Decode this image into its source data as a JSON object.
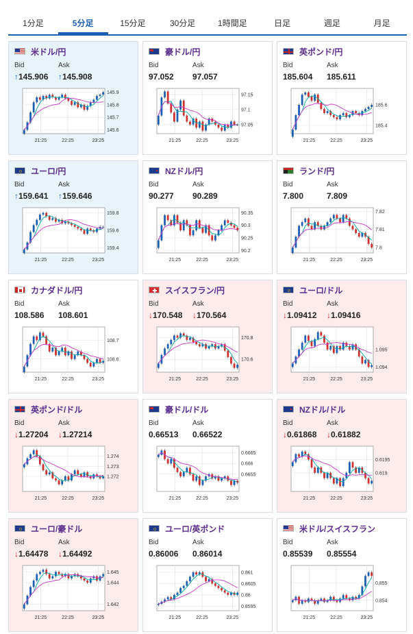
{
  "tabs": [
    "1分足",
    "5分足",
    "15分足",
    "30分足",
    "1時間足",
    "日足",
    "週足",
    "月足"
  ],
  "active_tab": 1,
  "labels": {
    "bid": "Bid",
    "ask": "Ask"
  },
  "x_ticks": [
    "21:25",
    "22:25",
    "23:25"
  ],
  "colors": {
    "up_candle": "#1a5fb4",
    "down_candle": "#d32f2f",
    "ma1": "#00a6a6",
    "ma2": "#cc33cc"
  },
  "cards": [
    {
      "pair": "米ドル/円",
      "flag": "us-jp-flag",
      "trend": "up",
      "bid": "145.906",
      "ask": "145.908",
      "yticks": [
        "145.9",
        "145.8",
        "145.7",
        "145.6"
      ],
      "closes": [
        145.6,
        145.66,
        145.74,
        145.82,
        145.86,
        145.84,
        145.87,
        145.85,
        145.88,
        145.86,
        145.84,
        145.86,
        145.88,
        145.85,
        145.83,
        145.8,
        145.82,
        145.78,
        145.8,
        145.76,
        145.79,
        145.82,
        145.84,
        145.87,
        145.88,
        145.9
      ],
      "yrange": [
        145.57,
        145.93
      ]
    },
    {
      "pair": "豪ドル/円",
      "flag": "au-jp-flag",
      "trend": "flat",
      "bid": "97.052",
      "ask": "97.057",
      "yticks": [
        "97.15",
        "97.1",
        "97.05"
      ],
      "closes": [
        97.08,
        97.14,
        97.16,
        97.12,
        97.09,
        97.06,
        97.1,
        97.13,
        97.08,
        97.06,
        97.05,
        97.07,
        97.04,
        97.06,
        97.03,
        97.05,
        97.07,
        97.06,
        97.05,
        97.04,
        97.03,
        97.05,
        97.04,
        97.06,
        97.05,
        97.05
      ],
      "yrange": [
        97.02,
        97.17
      ]
    },
    {
      "pair": "英ポンド/円",
      "flag": "gb-jp-flag",
      "trend": "flat",
      "bid": "185.604",
      "ask": "185.611",
      "yticks": [
        "185.6",
        "185.4"
      ],
      "closes": [
        185.36,
        185.5,
        185.6,
        185.7,
        185.72,
        185.68,
        185.64,
        185.7,
        185.62,
        185.56,
        185.52,
        185.54,
        185.5,
        185.48,
        185.46,
        185.5,
        185.52,
        185.48,
        185.5,
        185.54,
        185.52,
        185.5,
        185.54,
        185.56,
        185.58,
        185.6
      ],
      "yrange": [
        185.32,
        185.76
      ]
    },
    {
      "pair": "ユーロ/円",
      "flag": "eu-jp-flag",
      "trend": "up",
      "bid": "159.641",
      "ask": "159.646",
      "yticks": [
        "159.8",
        "159.6",
        "159.4"
      ],
      "closes": [
        159.38,
        159.46,
        159.58,
        159.66,
        159.72,
        159.78,
        159.8,
        159.76,
        159.72,
        159.74,
        159.7,
        159.72,
        159.68,
        159.7,
        159.68,
        159.66,
        159.64,
        159.62,
        159.6,
        159.56,
        159.62,
        159.6,
        159.58,
        159.62,
        159.64,
        159.64
      ],
      "yrange": [
        159.34,
        159.86
      ]
    },
    {
      "pair": "NZドル/円",
      "flag": "nz-jp-flag",
      "trend": "flat",
      "bid": "90.277",
      "ask": "90.289",
      "yticks": [
        "90.35",
        "90.3",
        "90.25",
        "90.2"
      ],
      "closes": [
        90.24,
        90.3,
        90.34,
        90.32,
        90.3,
        90.34,
        90.31,
        90.28,
        90.32,
        90.3,
        90.26,
        90.28,
        90.32,
        90.29,
        90.27,
        90.3,
        90.26,
        90.24,
        90.26,
        90.28,
        90.3,
        90.32,
        90.31,
        90.3,
        90.29,
        90.28
      ],
      "yrange": [
        90.19,
        90.37
      ]
    },
    {
      "pair": "ランド/円",
      "flag": "za-jp-flag",
      "trend": "flat",
      "bid": "7.800",
      "ask": "7.809",
      "yticks": [
        "7.82",
        "7.81",
        "7.8"
      ],
      "closes": [
        7.8,
        7.806,
        7.812,
        7.814,
        7.816,
        7.812,
        7.81,
        7.814,
        7.812,
        7.81,
        7.812,
        7.814,
        7.816,
        7.818,
        7.816,
        7.814,
        7.818,
        7.816,
        7.812,
        7.81,
        7.808,
        7.806,
        7.808,
        7.806,
        7.802,
        7.8
      ],
      "yrange": [
        7.797,
        7.822
      ]
    },
    {
      "pair": "カナダドル/円",
      "flag": "ca-jp-flag",
      "trend": "flat",
      "bid": "108.586",
      "ask": "108.601",
      "yticks": [
        "108.7",
        "108.6"
      ],
      "closes": [
        108.56,
        108.62,
        108.68,
        108.72,
        108.7,
        108.74,
        108.72,
        108.68,
        108.64,
        108.66,
        108.62,
        108.64,
        108.66,
        108.62,
        108.64,
        108.6,
        108.62,
        108.64,
        108.62,
        108.6,
        108.58,
        108.56,
        108.58,
        108.6,
        108.58,
        108.59
      ],
      "yrange": [
        108.53,
        108.77
      ]
    },
    {
      "pair": "スイスフラン/円",
      "flag": "ch-jp-flag",
      "trend": "down",
      "bid": "170.548",
      "ask": "170.564",
      "yticks": [
        "170.8",
        "170.6"
      ],
      "closes": [
        170.56,
        170.64,
        170.7,
        170.74,
        170.78,
        170.82,
        170.8,
        170.84,
        170.82,
        170.78,
        170.8,
        170.76,
        170.74,
        170.72,
        170.74,
        170.7,
        170.72,
        170.74,
        170.7,
        170.72,
        170.74,
        170.68,
        170.62,
        170.56,
        170.52,
        170.55
      ],
      "yrange": [
        170.48,
        170.9
      ]
    },
    {
      "pair": "ユーロ/ドル",
      "flag": "eu-us-flag",
      "trend": "down",
      "bid": "1.09412",
      "ask": "1.09416",
      "yticks": [
        "1.095",
        "1.094"
      ],
      "closes": [
        1.0942,
        1.0946,
        1.095,
        1.0954,
        1.0958,
        1.0955,
        1.0952,
        1.0956,
        1.096,
        1.0958,
        1.0954,
        1.095,
        1.0952,
        1.0948,
        1.0952,
        1.095,
        1.0954,
        1.0952,
        1.095,
        1.0953,
        1.095,
        1.0946,
        1.0942,
        1.0944,
        1.094,
        1.0941
      ],
      "yrange": [
        1.0937,
        1.0963
      ]
    },
    {
      "pair": "英ポンド/ドル",
      "flag": "gb-us-flag",
      "trend": "down",
      "bid": "1.27204",
      "ask": "1.27214",
      "yticks": [
        "1.274",
        "1.273",
        "1.272"
      ],
      "closes": [
        1.2732,
        1.2738,
        1.2742,
        1.2746,
        1.274,
        1.2732,
        1.2726,
        1.2722,
        1.2724,
        1.2718,
        1.2716,
        1.2712,
        1.2716,
        1.272,
        1.2716,
        1.2722,
        1.2726,
        1.2722,
        1.272,
        1.2724,
        1.272,
        1.2718,
        1.2722,
        1.272,
        1.2718,
        1.272
      ],
      "yrange": [
        1.2705,
        1.275
      ]
    },
    {
      "pair": "豪ドル/ドル",
      "flag": "au-us-flag",
      "trend": "flat",
      "bid": "0.66513",
      "ask": "0.66522",
      "yticks": [
        "0.6665",
        "0.666",
        "0.6655"
      ],
      "closes": [
        0.6664,
        0.6666,
        0.6662,
        0.666,
        0.6662,
        0.6658,
        0.6656,
        0.6654,
        0.6656,
        0.6658,
        0.6655,
        0.6652,
        0.6654,
        0.665,
        0.6652,
        0.6654,
        0.6655,
        0.6653,
        0.6654,
        0.6652,
        0.6653,
        0.6654,
        0.6652,
        0.665,
        0.6652,
        0.6651
      ],
      "yrange": [
        0.6647,
        0.6668
      ]
    },
    {
      "pair": "NZドル/ドル",
      "flag": "nz-us-flag",
      "trend": "down",
      "bid": "0.61868",
      "ask": "0.61882",
      "yticks": [
        "0.6195",
        "0.619"
      ],
      "closes": [
        0.6194,
        0.6197,
        0.6196,
        0.6198,
        0.6197,
        0.6195,
        0.6192,
        0.619,
        0.6192,
        0.619,
        0.6188,
        0.619,
        0.6188,
        0.6186,
        0.6188,
        0.6185,
        0.6188,
        0.619,
        0.6194,
        0.6192,
        0.619,
        0.6192,
        0.619,
        0.6188,
        0.6186,
        0.6187
      ],
      "yrange": [
        0.6183,
        0.62
      ]
    },
    {
      "pair": "ユーロ/豪ドル",
      "flag": "eu-au-flag",
      "trend": "down",
      "bid": "1.64478",
      "ask": "1.64492",
      "yticks": [
        "1.645",
        "1.644",
        "1.642"
      ],
      "closes": [
        1.642,
        1.6428,
        1.6436,
        1.6442,
        1.6448,
        1.645,
        1.6452,
        1.6448,
        1.6444,
        1.6446,
        1.645,
        1.6448,
        1.6446,
        1.6448,
        1.6444,
        1.6446,
        1.6448,
        1.6446,
        1.6444,
        1.6442,
        1.644,
        1.6444,
        1.6446,
        1.6442,
        1.6446,
        1.6448
      ],
      "yrange": [
        1.6414,
        1.6456
      ]
    },
    {
      "pair": "ユーロ/英ポンド",
      "flag": "eu-gb-flag",
      "trend": "flat",
      "bid": "0.86006",
      "ask": "0.86014",
      "yticks": [
        "0.861",
        "0.8605",
        "0.86",
        "0.8595"
      ],
      "closes": [
        0.8596,
        0.8597,
        0.8598,
        0.8599,
        0.8598,
        0.86,
        0.8601,
        0.8603,
        0.8604,
        0.8606,
        0.8608,
        0.861,
        0.8609,
        0.861,
        0.8608,
        0.8606,
        0.8607,
        0.8605,
        0.8604,
        0.8603,
        0.8602,
        0.8601,
        0.86,
        0.8601,
        0.86,
        0.8601
      ],
      "yrange": [
        0.8593,
        0.8613
      ]
    },
    {
      "pair": "米ドル/スイスフラン",
      "flag": "us-ch-flag",
      "trend": "flat",
      "bid": "0.85539",
      "ask": "0.85554",
      "yticks": [
        "0.855",
        "0.854"
      ],
      "closes": [
        0.854,
        0.8542,
        0.8538,
        0.854,
        0.8539,
        0.8541,
        0.854,
        0.8538,
        0.854,
        0.8541,
        0.8539,
        0.854,
        0.8542,
        0.854,
        0.8539,
        0.8541,
        0.8543,
        0.8541,
        0.854,
        0.8542,
        0.8541,
        0.8543,
        0.8548,
        0.8554,
        0.8556,
        0.8554
      ],
      "yrange": [
        0.8534,
        0.856
      ]
    }
  ]
}
